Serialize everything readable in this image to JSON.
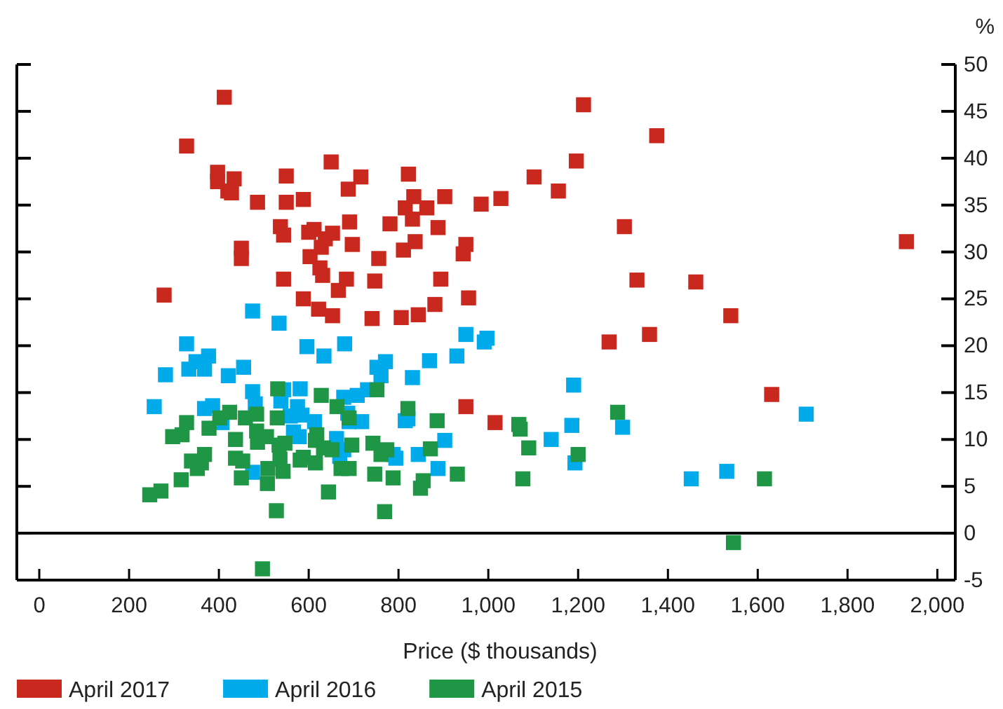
{
  "chart_data": {
    "type": "scatter",
    "xlabel": "Price ($ thousands)",
    "ylabel": "%",
    "marker": "square",
    "legend": "bottom",
    "grid": false,
    "xlim": [
      -50,
      2040
    ],
    "ylim": [
      -5,
      50
    ],
    "xticks": [
      0,
      200,
      400,
      600,
      800,
      {
        "value": 1000,
        "label": "1,000"
      },
      {
        "value": 1200,
        "label": "1,200"
      },
      {
        "value": 1400,
        "label": "1,400"
      },
      {
        "value": 1600,
        "label": "1,600"
      },
      {
        "value": 1800,
        "label": "1,800"
      },
      {
        "value": 2000,
        "label": "2,000"
      }
    ],
    "yticks": [
      -5,
      0,
      5,
      10,
      15,
      20,
      25,
      30,
      35,
      40,
      45,
      50
    ],
    "ref_lines": [
      {
        "axis": "y",
        "value": 0,
        "color": "#000000"
      }
    ],
    "series": [
      {
        "name": "April 2017",
        "color": "#c8281e",
        "x": [
          412,
          328,
          397,
          397,
          434,
          420,
          428,
          550,
          650,
          716,
          688,
          822,
          486,
          550,
          588,
          834,
          903,
          984,
          1028,
          815,
          863,
          537,
          544,
          600,
          612,
          653,
          637,
          691,
          781,
          831,
          888,
          628,
          697,
          837,
          811,
          950,
          944,
          450,
          450,
          603,
          756,
          625,
          631,
          544,
          684,
          747,
          894,
          666,
          278,
          588,
          956,
          881,
          622,
          653,
          741,
          806,
          844,
          1102,
          1156,
          1196,
          1212,
          1375,
          1303,
          1331,
          1462,
          1540,
          1931,
          1269,
          1359,
          1631,
          1015,
          950
        ],
        "values": [
          46.5,
          41.3,
          38.5,
          37.5,
          37.8,
          36.5,
          36.3,
          38.1,
          39.6,
          38,
          36.7,
          38.3,
          35.3,
          35.3,
          35.6,
          35.9,
          35.9,
          35.1,
          35.7,
          34.7,
          34.7,
          32.7,
          31.8,
          32.1,
          32.4,
          32,
          31.4,
          33.2,
          33,
          33.5,
          32.6,
          30.5,
          30.8,
          31.1,
          30.2,
          30.8,
          29.8,
          30.4,
          29.3,
          29.5,
          29.3,
          28.3,
          27.5,
          27.1,
          27.1,
          26.9,
          27.1,
          25.9,
          25.4,
          25,
          25.1,
          24.4,
          23.9,
          23.2,
          22.9,
          23,
          23.3,
          38,
          36.5,
          39.7,
          45.7,
          42.4,
          32.7,
          27,
          26.8,
          23.2,
          31.1,
          20.4,
          21.2,
          14.8,
          11.8,
          13.5
        ]
      },
      {
        "name": "April 2016",
        "color": "#00aaeb",
        "x": [
          475,
          534,
          950,
          997,
          991,
          328,
          596,
          680,
          634,
          349,
          377,
          333,
          368,
          281,
          421,
          455,
          752,
          771,
          761,
          831,
          869,
          930,
          475,
          544,
          581,
          678,
          708,
          731,
          256,
          368,
          386,
          481,
          538,
          575,
          559,
          585,
          687,
          407,
          613,
          690,
          718,
          815,
          821,
          566,
          579,
          662,
          678,
          669,
          788,
          794,
          844,
          903,
          888,
          475,
          1190,
          1186,
          1140,
          1193,
          1299,
          1452,
          1531,
          1708
        ],
        "values": [
          23.7,
          22.4,
          21.2,
          20.8,
          20.4,
          20.2,
          19.9,
          20.2,
          18.9,
          18.3,
          18.9,
          17.5,
          17.5,
          16.9,
          16.8,
          17.7,
          17.7,
          18.3,
          16.8,
          16.6,
          18.4,
          18.9,
          15.1,
          15.3,
          15.4,
          14.5,
          14.7,
          15.3,
          13.5,
          13.3,
          13.6,
          13.8,
          14.1,
          13.5,
          12.5,
          12.6,
          12.8,
          11.8,
          11.9,
          11.9,
          11.9,
          12,
          12.2,
          10.8,
          10.3,
          10.1,
          8.9,
          8.2,
          8.4,
          8,
          8.4,
          9.9,
          6.9,
          6.5,
          15.8,
          11.5,
          10,
          7.5,
          11.3,
          5.8,
          6.6,
          12.7
        ]
      },
      {
        "name": "April 2015",
        "color": "#1e9646",
        "x": [
          531,
          628,
          752,
          663,
          821,
          424,
          402,
          484,
          459,
          530,
          690,
          886,
          328,
          378,
          484,
          506,
          297,
          318,
          437,
          486,
          618,
          615,
          534,
          547,
          633,
          652,
          696,
          743,
          774,
          761,
          871,
          368,
          339,
          361,
          352,
          437,
          453,
          536,
          581,
          588,
          615,
          509,
          543,
          672,
          690,
          316,
          450,
          508,
          747,
          788,
          931,
          855,
          849,
          271,
          246,
          644,
          528,
          769,
          497,
          1068,
          1071,
          1090,
          1200,
          1077,
          1288,
          1615,
          1546
        ],
        "values": [
          15.4,
          14.7,
          15.3,
          13.5,
          13.3,
          12.9,
          12.3,
          12.7,
          12.3,
          12.3,
          12.3,
          12,
          11.8,
          11.2,
          10.9,
          10.3,
          10.3,
          10.5,
          10,
          9.7,
          10.5,
          9.9,
          9.4,
          9.6,
          9.1,
          8.9,
          9.4,
          9.6,
          8.9,
          8.4,
          9,
          8.4,
          7.7,
          7.5,
          6.9,
          8,
          7.7,
          7.9,
          7.8,
          8.1,
          7.5,
          6.9,
          6.6,
          6.9,
          6.9,
          5.7,
          5.9,
          5.3,
          6.3,
          5.9,
          6.3,
          5.6,
          4.8,
          4.5,
          4.1,
          4.4,
          2.4,
          2.3,
          -3.8,
          11.6,
          11.1,
          9.1,
          8.4,
          5.8,
          12.9,
          5.8,
          -1
        ]
      }
    ]
  }
}
